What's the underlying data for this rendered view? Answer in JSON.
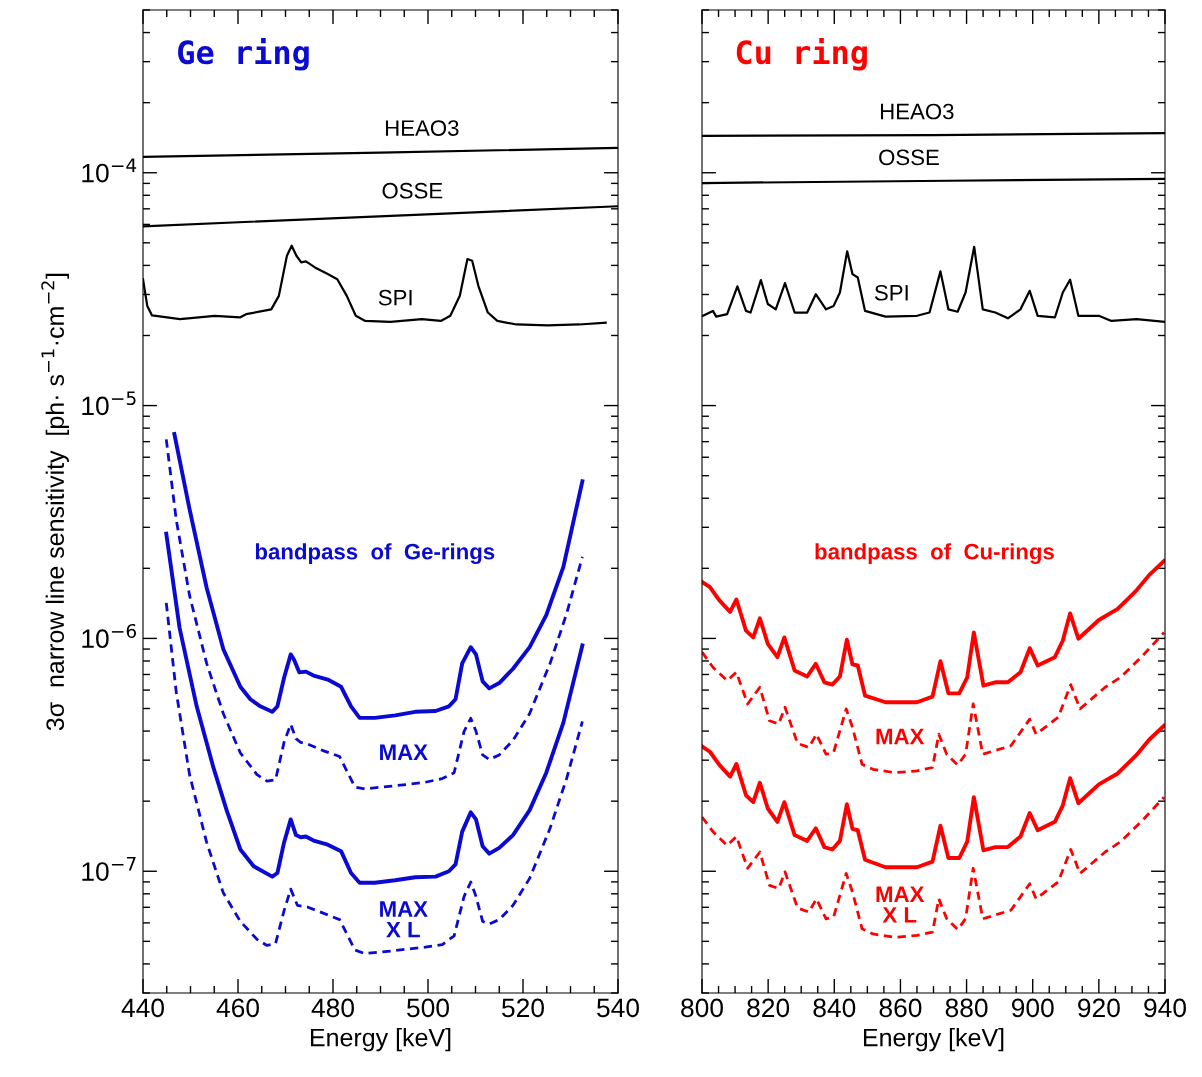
{
  "chart_data": [
    {
      "type": "line",
      "title": "Ge ring",
      "xlabel": "Energy [keV]",
      "ylabel": "3σ  narrow line sensitivity  [ph· s$^{−1}$·cm$^{−2}$]",
      "log": "y",
      "grid": false,
      "xlim": [
        440,
        540
      ],
      "xticks": [
        440,
        460,
        480,
        500,
        520,
        540
      ],
      "ylim": [
        3e-08,
        0.0005
      ],
      "yticks": [
        {
          "value": 1e-07,
          "label": "10$^{−7}$"
        },
        {
          "value": 1e-06,
          "label": "10$^{−6}$"
        },
        {
          "value": 1e-05,
          "label": "10$^{−5}$"
        },
        {
          "value": 0.0001,
          "label": "10$^{−4}$"
        }
      ],
      "series": [
        {
          "name": "HEAO3",
          "color": "#000000",
          "line_style": "solid",
          "x": [
            440,
            490,
            540
          ],
          "values": [
            0.000117,
            0.000122,
            0.000128
          ]
        },
        {
          "name": "OSSE",
          "color": "#000000",
          "line_style": "solid",
          "x": [
            440,
            540
          ],
          "values": [
            5.89e-05,
            7.18e-05
          ]
        },
        {
          "name": "SPI",
          "color": "#000000",
          "line_style": "solid",
          "x": [
            440.0,
            440.9,
            441.9,
            447.8,
            455.1,
            460.4,
            461.7,
            467.0,
            468.6,
            470.3,
            471.3,
            472.3,
            473.3,
            474.3,
            476.2,
            478.9,
            480.9,
            482.9,
            484.8,
            486.8,
            492.1,
            498.7,
            502.7,
            504.7,
            506.7,
            508.3,
            509.3,
            510.6,
            512.6,
            514.6,
            518.6,
            525.2,
            531.8,
            537.4
          ],
          "values": [
            3.49e-05,
            2.68e-05,
            2.44e-05,
            2.35e-05,
            2.43e-05,
            2.39e-05,
            2.47e-05,
            2.59e-05,
            2.96e-05,
            4.4e-05,
            4.86e-05,
            4.4e-05,
            4.12e-05,
            4.16e-05,
            3.92e-05,
            3.67e-05,
            3.49e-05,
            2.96e-05,
            2.43e-05,
            2.31e-05,
            2.29e-05,
            2.35e-05,
            2.31e-05,
            2.43e-05,
            2.96e-05,
            4.26e-05,
            4.19e-05,
            3.27e-05,
            2.51e-05,
            2.31e-05,
            2.23e-05,
            2.21e-05,
            2.23e-05,
            2.27e-05
          ]
        },
        {
          "color": "#0a0ad2",
          "line_style": "solid",
          "x": [
            446.6,
            449.8,
            453.4,
            456.9,
            460.5,
            462.6,
            464.7,
            467.2,
            468.3,
            469.7,
            471.1,
            471.8,
            472.9,
            474.3,
            476.1,
            478.9,
            481.7,
            483.8,
            485.6,
            488.8,
            493.1,
            497.3,
            501.6,
            504.4,
            505.8,
            507.2,
            509.0,
            510.1,
            511.5,
            512.9,
            515.0,
            517.9,
            521.4,
            524.9,
            528.5,
            532.5
          ],
          "values": [
            7.55e-06,
            3.59e-06,
            1.65e-06,
            9e-07,
            6.2e-07,
            5.48e-07,
            5.11e-07,
            4.84e-07,
            5.11e-07,
            6.78e-07,
            8.54e-07,
            8.09e-07,
            7.15e-07,
            7.2e-07,
            6.9e-07,
            6.66e-07,
            6.2e-07,
            5.11e-07,
            4.56e-07,
            4.56e-07,
            4.67e-07,
            4.84e-07,
            4.88e-07,
            5.11e-07,
            5.48e-07,
            7.81e-07,
            9.17e-07,
            8.54e-07,
            6.54e-07,
            6.1e-07,
            6.43e-07,
            7.41e-07,
            9.17e-07,
            1.26e-06,
            2.03e-06,
            4.73e-06
          ]
        },
        {
          "color": "#0a0ad2",
          "line_style": "dashed",
          "x": [
            444.9,
            447.0,
            449.8,
            453.4,
            456.9,
            460.5,
            464.0,
            466.1,
            467.9,
            469.7,
            471.1,
            472.2,
            473.2,
            474.6,
            478.2,
            481.4,
            484.6,
            486.7,
            492.4,
            499.4,
            503.0,
            505.5,
            507.6,
            509.0,
            510.1,
            511.5,
            512.9,
            515.0,
            517.9,
            521.4,
            525.7,
            529.2,
            532.5
          ],
          "values": [
            7.16e-06,
            3.23e-06,
            1.53e-06,
            7.81e-07,
            4.76e-07,
            3.22e-07,
            2.6e-07,
            2.44e-07,
            2.47e-07,
            3.58e-07,
            4.28e-07,
            3.71e-07,
            3.58e-07,
            3.52e-07,
            3.28e-07,
            3.11e-07,
            2.3e-07,
            2.26e-07,
            2.32e-07,
            2.41e-07,
            2.5e-07,
            2.65e-07,
            3.99e-07,
            4.54e-07,
            3.99e-07,
            3.16e-07,
            3.02e-07,
            3.16e-07,
            3.65e-07,
            4.76e-07,
            7.81e-07,
            1.28e-06,
            2.24e-06
          ]
        },
        {
          "color": "#0a0ad2",
          "line_style": "solid",
          "x": [
            444.9,
            447.7,
            451.3,
            454.8,
            457.6,
            460.5,
            463.3,
            467.2,
            468.3,
            469.7,
            471.1,
            472.2,
            473.2,
            474.3,
            476.1,
            478.9,
            481.7,
            483.8,
            485.6,
            488.8,
            493.1,
            497.3,
            501.6,
            504.4,
            505.8,
            507.2,
            509.0,
            510.1,
            511.5,
            512.9,
            515.0,
            517.9,
            521.4,
            524.9,
            528.5,
            532.5
          ],
          "values": [
            2.82e-06,
            1.11e-06,
            5.11e-07,
            2.8e-07,
            1.83e-07,
            1.24e-07,
            1.05e-07,
            9.48e-08,
            9.83e-08,
            1.33e-07,
            1.67e-07,
            1.43e-07,
            1.4e-07,
            1.41e-07,
            1.35e-07,
            1.3e-07,
            1.22e-07,
            9.83e-08,
            8.93e-08,
            8.93e-08,
            9.15e-08,
            9.42e-08,
            9.48e-08,
            1e-07,
            1.07e-07,
            1.48e-07,
            1.79e-07,
            1.67e-07,
            1.28e-07,
            1.19e-07,
            1.26e-07,
            1.43e-07,
            1.83e-07,
            2.65e-07,
            4.35e-07,
            9.33e-07
          ]
        },
        {
          "color": "#0a0ad2",
          "line_style": "dashed",
          "x": [
            444.9,
            447.0,
            449.8,
            453.4,
            456.9,
            460.5,
            464.0,
            466.1,
            467.9,
            469.7,
            471.1,
            472.5,
            474.6,
            478.2,
            481.4,
            484.6,
            486.7,
            492.4,
            499.4,
            503.0,
            505.5,
            507.6,
            509.0,
            510.1,
            511.5,
            512.9,
            515.0,
            517.9,
            521.4,
            525.7,
            529.2,
            532.5
          ],
          "values": [
            1.42e-06,
            5.88e-07,
            2.6e-07,
            1.33e-07,
            8.08e-08,
            6.09e-08,
            5.1e-08,
            4.8e-08,
            4.89e-08,
            6.77e-08,
            8.38e-08,
            7.14e-08,
            7.02e-08,
            6.58e-08,
            6.2e-08,
            4.59e-08,
            4.43e-08,
            4.55e-08,
            4.72e-08,
            4.84e-08,
            5.28e-08,
            7.8e-08,
            8.99e-08,
            7.8e-08,
            6.09e-08,
            5.94e-08,
            6.2e-08,
            7.14e-08,
            9.32e-08,
            1.53e-07,
            2.51e-07,
            4.4e-07
          ]
        }
      ],
      "annotations": [
        "bandpass  of  Ge-rings",
        "MAX",
        "MAX\nX L"
      ]
    },
    {
      "type": "line",
      "title": "Cu ring",
      "xlabel": "Energy [keV]",
      "log": "y",
      "grid": false,
      "tick_labels": "x",
      "xlim": [
        800,
        940
      ],
      "xticks": [
        800,
        820,
        840,
        860,
        880,
        900,
        920,
        940
      ],
      "ylim": [
        3e-08,
        0.0005
      ],
      "yticks": [
        {
          "value": 1e-07,
          "label": null
        },
        {
          "value": 1e-06,
          "label": null
        },
        {
          "value": 1e-05,
          "label": null
        },
        {
          "value": 0.0001,
          "label": null
        }
      ],
      "series": [
        {
          "name": "HEAO3",
          "color": "#000000",
          "line_style": "solid",
          "x": [
            800,
            870,
            940
          ],
          "values": [
            0.000144,
            0.000145,
            0.000148
          ]
        },
        {
          "name": "OSSE",
          "color": "#000000",
          "line_style": "solid",
          "x": [
            800,
            874.5,
            940
          ],
          "values": [
            9.03e-05,
            9.24e-05,
            9.42e-05
          ]
        },
        {
          "name": "SPI",
          "color": "#000000",
          "line_style": "solid",
          "x": [
            800.3,
            803.3,
            804.3,
            807.6,
            810.7,
            813.3,
            814.7,
            817.8,
            819.9,
            822.3,
            825.1,
            828.0,
            831.8,
            834.4,
            837.5,
            839.8,
            841.7,
            843.9,
            845.5,
            847.1,
            849.3,
            855.5,
            865.0,
            868.8,
            872.1,
            874.5,
            877.3,
            879.7,
            882.3,
            884.9,
            888.7,
            892.5,
            896.3,
            899.1,
            901.5,
            906.7,
            909.1,
            911.3,
            913.8,
            920.0,
            923.8,
            931.4,
            939.7
          ],
          "values": [
            2.43e-05,
            2.55e-05,
            2.41e-05,
            2.47e-05,
            3.25e-05,
            2.55e-05,
            2.51e-05,
            3.46e-05,
            2.73e-05,
            2.59e-05,
            3.36e-05,
            2.51e-05,
            2.51e-05,
            3.01e-05,
            2.59e-05,
            2.68e-05,
            3.06e-05,
            4.6e-05,
            3.67e-05,
            3.55e-05,
            2.55e-05,
            2.41e-05,
            2.43e-05,
            2.51e-05,
            3.77e-05,
            2.59e-05,
            2.53e-05,
            3.06e-05,
            4.81e-05,
            2.59e-05,
            2.51e-05,
            2.37e-05,
            2.59e-05,
            3.11e-05,
            2.43e-05,
            2.39e-05,
            3.06e-05,
            3.47e-05,
            2.43e-05,
            2.43e-05,
            2.31e-05,
            2.35e-05,
            2.29e-05
          ]
        },
        {
          "color": "#ff0000",
          "line_style": "solid",
          "x": [
            800.0,
            802.4,
            805.2,
            808.5,
            810.4,
            813.3,
            815.5,
            817.5,
            819.9,
            822.8,
            824.9,
            828.0,
            831.8,
            834.4,
            837.0,
            839.4,
            841.7,
            843.8,
            845.5,
            847.1,
            849.3,
            855.5,
            865.0,
            869.7,
            872.1,
            874.5,
            877.8,
            880.2,
            882.2,
            885.1,
            888.7,
            892.5,
            896.3,
            899.1,
            901.5,
            906.7,
            909.1,
            911.3,
            913.8,
            920.0,
            925.7,
            931.4,
            935.2,
            939.7
          ],
          "values": [
            1.75e-06,
            1.66e-06,
            1.46e-06,
            1.3e-06,
            1.47e-06,
            1.08e-06,
            1.01e-06,
            1.22e-06,
            9.48e-07,
            8.31e-07,
            1.01e-06,
            7.28e-07,
            6.86e-07,
            7.78e-07,
            6.48e-07,
            6.33e-07,
            6.86e-07,
            9.87e-07,
            7.73e-07,
            7.65e-07,
            5.68e-07,
            5.32e-07,
            5.32e-07,
            5.62e-07,
            7.99e-07,
            5.81e-07,
            5.81e-07,
            6.81e-07,
            1.06e-06,
            6.27e-07,
            6.48e-07,
            6.48e-07,
            7.16e-07,
            9.08e-07,
            7.65e-07,
            8.31e-07,
            9.8e-07,
            1.28e-06,
            9.97e-07,
            1.2e-06,
            1.34e-06,
            1.61e-06,
            1.87e-06,
            2.15e-06
          ]
        },
        {
          "color": "#ff0000",
          "line_style": "dashed",
          "x": [
            800.0,
            803.3,
            807.6,
            810.4,
            813.8,
            817.5,
            820.4,
            823.2,
            825.1,
            828.9,
            832.3,
            834.6,
            837.5,
            839.8,
            843.6,
            845.5,
            848.4,
            851.7,
            858.3,
            865.0,
            869.7,
            871.6,
            874.0,
            877.3,
            879.7,
            882.0,
            884.9,
            893.4,
            899.1,
            901.0,
            907.7,
            911.5,
            914.3,
            921.9,
            926.6,
            933.3,
            939.7
          ],
          "values": [
            8.73e-07,
            7.52e-07,
            6.59e-07,
            7.16e-07,
            5.23e-07,
            6.17e-07,
            4.43e-07,
            4.29e-07,
            5.06e-07,
            3.54e-07,
            3.4e-07,
            3.88e-07,
            3.18e-07,
            3.24e-07,
            4.98e-07,
            4.15e-07,
            2.88e-07,
            2.74e-07,
            2.65e-07,
            2.7e-07,
            2.79e-07,
            3.88e-07,
            3.18e-07,
            2.86e-07,
            3.18e-07,
            5.23e-07,
            3.18e-07,
            3.46e-07,
            4.5e-07,
            3.88e-07,
            4.58e-07,
            6.33e-07,
            4.98e-07,
            6.17e-07,
            6.81e-07,
            8.45e-07,
            1.06e-06
          ]
        },
        {
          "color": "#ff0000",
          "line_style": "solid",
          "x": [
            800.0,
            802.4,
            805.2,
            808.5,
            810.4,
            813.3,
            815.5,
            817.5,
            819.9,
            822.8,
            824.9,
            828.0,
            831.8,
            834.4,
            837.0,
            839.4,
            841.7,
            843.8,
            845.5,
            847.1,
            849.3,
            855.5,
            865.0,
            869.7,
            872.1,
            874.5,
            877.8,
            880.2,
            882.2,
            885.1,
            888.7,
            892.5,
            896.3,
            899.1,
            901.5,
            906.7,
            909.1,
            911.3,
            913.8,
            920.0,
            925.7,
            931.4,
            935.2,
            939.7
          ],
          "values": [
            3.44e-07,
            3.26e-07,
            2.87e-07,
            2.55e-07,
            2.89e-07,
            2.12e-07,
            1.98e-07,
            2.4e-07,
            1.86e-07,
            1.63e-07,
            1.98e-07,
            1.43e-07,
            1.35e-07,
            1.53e-07,
            1.27e-07,
            1.24e-07,
            1.35e-07,
            1.94e-07,
            1.52e-07,
            1.5e-07,
            1.12e-07,
            1.04e-07,
            1.04e-07,
            1.1e-07,
            1.57e-07,
            1.14e-07,
            1.14e-07,
            1.34e-07,
            2.08e-07,
            1.23e-07,
            1.27e-07,
            1.27e-07,
            1.41e-07,
            1.78e-07,
            1.5e-07,
            1.63e-07,
            1.92e-07,
            2.51e-07,
            1.96e-07,
            2.36e-07,
            2.63e-07,
            3.16e-07,
            3.67e-07,
            4.22e-07
          ]
        },
        {
          "color": "#ff0000",
          "line_style": "dashed",
          "x": [
            800.0,
            803.3,
            807.6,
            810.4,
            813.8,
            817.5,
            820.4,
            823.2,
            825.1,
            828.9,
            832.3,
            834.6,
            837.5,
            839.8,
            843.6,
            845.5,
            848.4,
            851.7,
            858.3,
            865.0,
            869.7,
            871.6,
            874.0,
            877.3,
            879.7,
            882.0,
            884.9,
            893.4,
            899.1,
            901.0,
            907.7,
            911.5,
            914.3,
            921.9,
            926.6,
            933.3,
            939.7
          ],
          "values": [
            1.71e-07,
            1.48e-07,
            1.29e-07,
            1.41e-07,
            1.03e-07,
            1.21e-07,
            8.7e-08,
            8.43e-08,
            9.94e-08,
            6.95e-08,
            6.68e-08,
            7.62e-08,
            6.25e-08,
            6.36e-08,
            9.78e-08,
            8.15e-08,
            5.66e-08,
            5.38e-08,
            5.2e-08,
            5.3e-08,
            5.48e-08,
            7.62e-08,
            6.25e-08,
            5.62e-08,
            6.25e-08,
            1.03e-07,
            6.25e-08,
            6.8e-08,
            8.84e-08,
            7.62e-08,
            9e-08,
            1.24e-07,
            9.78e-08,
            1.21e-07,
            1.34e-07,
            1.66e-07,
            2.08e-07
          ]
        }
      ],
      "annotations": [
        "bandpass  of  Cu-rings",
        "MAX",
        "MAX\nX L"
      ]
    }
  ]
}
